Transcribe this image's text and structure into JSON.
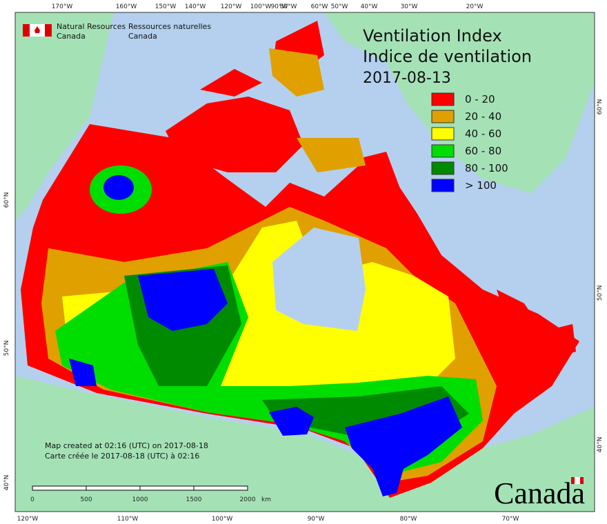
{
  "map": {
    "title": [
      "Ventilation Index",
      "Indice de ventilation",
      "2017-08-13"
    ],
    "legend": [
      {
        "label": "0 - 20",
        "color": "#ff0000"
      },
      {
        "label": "20 - 40",
        "color": "#dfa000"
      },
      {
        "label": "40 - 60",
        "color": "#ffff00"
      },
      {
        "label": "60 - 80",
        "color": "#00dd00"
      },
      {
        "label": "80 - 100",
        "color": "#008a00"
      },
      {
        "label": "> 100",
        "color": "#0000ff"
      }
    ],
    "agency": {
      "en": [
        "Natural Resources",
        "Canada"
      ],
      "fr": [
        "Ressources naturelles",
        "Canada"
      ]
    },
    "top_labels": [
      "170°W",
      "160°W",
      "150°W",
      "140°W",
      "120°W",
      "100°W",
      "90°W",
      "80°W",
      "60°W",
      "50°W",
      "40°W",
      "30°W",
      "20°W"
    ],
    "bottom_labels": [
      "120°W",
      "110°W",
      "100°W",
      "90°W",
      "80°W",
      "70°W"
    ],
    "left_labels": [
      "60°N",
      "50°N",
      "40°N"
    ],
    "right_labels": [
      "60°N",
      "50°N",
      "40°N"
    ],
    "scale": {
      "labels": [
        "0",
        "500",
        "1000",
        "1500",
        "2000"
      ],
      "unit": "km"
    },
    "credits": [
      "Map created at 02:16 (UTC) on 2017-08-18",
      "Carte créée le 2017-08-18 (UTC) à 02:16"
    ],
    "wordmark": "Canada"
  }
}
